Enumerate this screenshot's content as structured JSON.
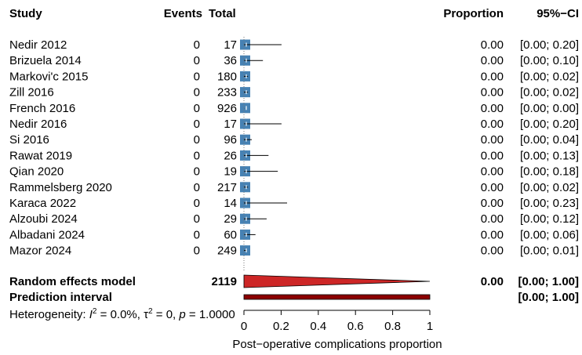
{
  "chart_data": {
    "type": "forest",
    "headers": {
      "study": "Study",
      "events": "Events",
      "total": "Total",
      "proportion": "Proportion",
      "ci": "95%−CI"
    },
    "studies": [
      {
        "name": "Nedir 2012",
        "events": "0",
        "total": "17",
        "proportion": "0.00",
        "ci": "[0.00; 0.20]",
        "est": 0,
        "lo": 0,
        "hi": 0.2
      },
      {
        "name": "Brizuela 2014",
        "events": "0",
        "total": "36",
        "proportion": "0.00",
        "ci": "[0.00; 0.10]",
        "est": 0,
        "lo": 0,
        "hi": 0.1
      },
      {
        "name": "Markovi'c 2015",
        "events": "0",
        "total": "180",
        "proportion": "0.00",
        "ci": "[0.00; 0.02]",
        "est": 0,
        "lo": 0,
        "hi": 0.02
      },
      {
        "name": "Zill 2016",
        "events": "0",
        "total": "233",
        "proportion": "0.00",
        "ci": "[0.00; 0.02]",
        "est": 0,
        "lo": 0,
        "hi": 0.02
      },
      {
        "name": "French 2016",
        "events": "0",
        "total": "926",
        "proportion": "0.00",
        "ci": "[0.00; 0.00]",
        "est": 0,
        "lo": 0,
        "hi": 0.0
      },
      {
        "name": "Nedir 2016",
        "events": "0",
        "total": "17",
        "proportion": "0.00",
        "ci": "[0.00; 0.20]",
        "est": 0,
        "lo": 0,
        "hi": 0.2
      },
      {
        "name": "Si 2016",
        "events": "0",
        "total": "96",
        "proportion": "0.00",
        "ci": "[0.00; 0.04]",
        "est": 0,
        "lo": 0,
        "hi": 0.04
      },
      {
        "name": "Rawat 2019",
        "events": "0",
        "total": "26",
        "proportion": "0.00",
        "ci": "[0.00; 0.13]",
        "est": 0,
        "lo": 0,
        "hi": 0.13
      },
      {
        "name": "Qian 2020",
        "events": "0",
        "total": "19",
        "proportion": "0.00",
        "ci": "[0.00; 0.18]",
        "est": 0,
        "lo": 0,
        "hi": 0.18
      },
      {
        "name": "Rammelsberg 2020",
        "events": "0",
        "total": "217",
        "proportion": "0.00",
        "ci": "[0.00; 0.02]",
        "est": 0,
        "lo": 0,
        "hi": 0.02
      },
      {
        "name": "Karaca 2022",
        "events": "0",
        "total": "14",
        "proportion": "0.00",
        "ci": "[0.00; 0.23]",
        "est": 0,
        "lo": 0,
        "hi": 0.23
      },
      {
        "name": "Alzoubi 2024",
        "events": "0",
        "total": "29",
        "proportion": "0.00",
        "ci": "[0.00; 0.12]",
        "est": 0,
        "lo": 0,
        "hi": 0.12
      },
      {
        "name": "Albadani 2024",
        "events": "0",
        "total": "60",
        "proportion": "0.00",
        "ci": "[0.00; 0.06]",
        "est": 0,
        "lo": 0,
        "hi": 0.06
      },
      {
        "name": "Mazor 2024",
        "events": "0",
        "total": "249",
        "proportion": "0.00",
        "ci": "[0.00; 0.01]",
        "est": 0,
        "lo": 0,
        "hi": 0.01
      }
    ],
    "random_effects": {
      "label": "Random effects model",
      "total": "2119",
      "proportion": "0.00",
      "ci": "[0.00; 1.00]",
      "est": 0,
      "lo": 0,
      "hi": 1.0
    },
    "prediction_interval": {
      "label": "Prediction interval",
      "ci": "[0.00; 1.00]",
      "lo": 0,
      "hi": 1.0
    },
    "heterogeneity": {
      "label": "Heterogeneity: ",
      "i2": "I",
      "i2_val": " = 0.0%, ",
      "tau": "τ",
      "tau_val": " = 0, ",
      "p": "p",
      "p_val": " = 1.0000"
    },
    "xaxis": {
      "label": "Post−operative complications proportion",
      "ticks": [
        0,
        0.2,
        0.4,
        0.6,
        0.8,
        1
      ],
      "tick_labels": [
        "0",
        "0.2",
        "0.4",
        "0.6",
        "0.8",
        "1"
      ],
      "range": [
        0,
        1
      ]
    },
    "colors": {
      "square": "#4682b4",
      "diamond": "#cd2626",
      "prediction": "#8b0000"
    }
  }
}
